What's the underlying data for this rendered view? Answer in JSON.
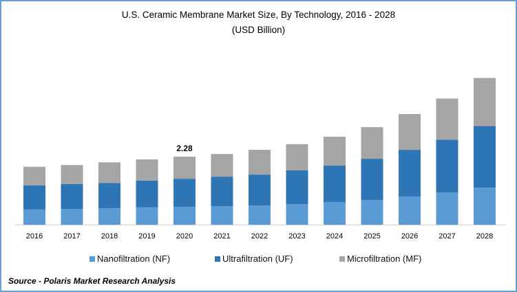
{
  "chart_data": {
    "type": "bar",
    "stacked": true,
    "title": "U.S. Ceramic Membrane Market Size, By Technology, 2016 - 2028",
    "subtitle": "(USD Billion)",
    "categories": [
      "2016",
      "2017",
      "2018",
      "2019",
      "2020",
      "2021",
      "2022",
      "2023",
      "2024",
      "2025",
      "2026",
      "2027",
      "2028"
    ],
    "series": [
      {
        "name": "Nanofiltration (NF)",
        "color": "#5b9bd5",
        "values": [
          0.51,
          0.53,
          0.55,
          0.58,
          0.6,
          0.62,
          0.64,
          0.69,
          0.76,
          0.83,
          0.94,
          1.08,
          1.24
        ]
      },
      {
        "name": "Ultrafiltration (UF)",
        "color": "#2e75b6",
        "values": [
          0.81,
          0.83,
          0.85,
          0.9,
          0.94,
          0.99,
          1.04,
          1.13,
          1.22,
          1.38,
          1.57,
          1.77,
          2.07
        ]
      },
      {
        "name": "Microfiltration (MF)",
        "color": "#a5a5a5",
        "values": [
          0.62,
          0.64,
          0.69,
          0.71,
          0.74,
          0.76,
          0.83,
          0.88,
          0.97,
          1.06,
          1.2,
          1.38,
          1.61
        ]
      }
    ],
    "data_labels": [
      {
        "category": "2020",
        "text": "2.28"
      }
    ],
    "ylim": [
      0,
      5
    ],
    "grid": false,
    "legend_position": "bottom"
  },
  "source": "Source - Polaris  Market Research Analysis"
}
